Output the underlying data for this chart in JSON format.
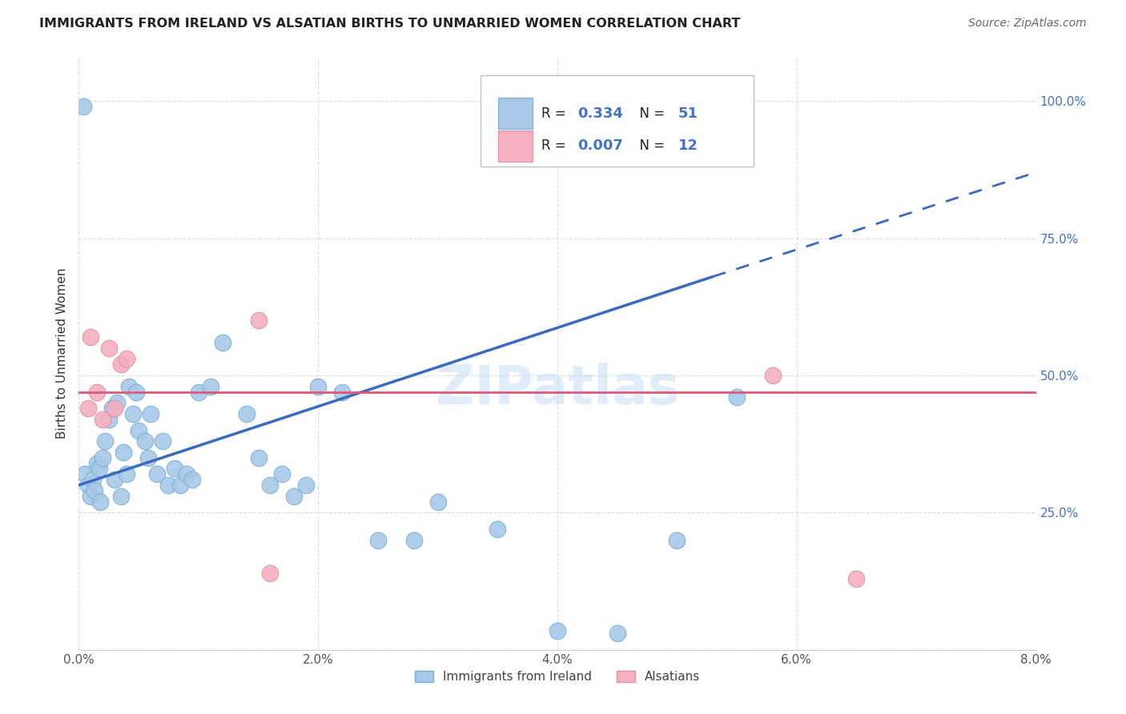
{
  "title": "IMMIGRANTS FROM IRELAND VS ALSATIAN BIRTHS TO UNMARRIED WOMEN CORRELATION CHART",
  "source": "Source: ZipAtlas.com",
  "ylabel": "Births to Unmarried Women",
  "xlim": [
    0.0,
    8.0
  ],
  "ylim": [
    0.0,
    108.0
  ],
  "xtick_vals": [
    0.0,
    2.0,
    4.0,
    6.0,
    8.0
  ],
  "xtick_labels": [
    "0.0%",
    "2.0%",
    "4.0%",
    "6.0%",
    "8.0%"
  ],
  "ytick_vals": [
    0.0,
    25.0,
    50.0,
    75.0,
    100.0
  ],
  "ytick_labels": [
    "",
    "25.0%",
    "50.0%",
    "75.0%",
    "100.0%"
  ],
  "blue_scatter_color": "#a8c8e8",
  "blue_edge_color": "#7aafd4",
  "pink_scatter_color": "#f4b0c0",
  "pink_edge_color": "#e090a8",
  "blue_line_color": "#3a6abf",
  "pink_line_color": "#e05878",
  "tick_label_color": "#4472c4",
  "legend_blue_r": "0.334",
  "legend_blue_n": "51",
  "legend_pink_r": "0.007",
  "legend_pink_n": "12",
  "watermark": "ZIPatlas",
  "blue_reg_x0": 0.0,
  "blue_reg_y0": 30.0,
  "blue_reg_x1": 5.3,
  "blue_reg_y1": 68.0,
  "blue_reg_dash_x0": 5.3,
  "blue_reg_dash_y0": 68.0,
  "blue_reg_dash_x1": 8.0,
  "blue_reg_dash_y1": 87.0,
  "pink_reg_y": 47.0,
  "blue_x": [
    0.05,
    0.08,
    0.1,
    0.12,
    0.13,
    0.15,
    0.17,
    0.18,
    0.2,
    0.22,
    0.25,
    0.28,
    0.3,
    0.32,
    0.35,
    0.37,
    0.4,
    0.42,
    0.45,
    0.48,
    0.5,
    0.55,
    0.58,
    0.6,
    0.65,
    0.7,
    0.75,
    0.8,
    0.85,
    0.9,
    0.95,
    1.0,
    1.1,
    1.2,
    1.4,
    1.5,
    1.6,
    1.7,
    1.8,
    1.9,
    2.0,
    2.2,
    2.5,
    2.8,
    3.0,
    3.5,
    4.0,
    4.5,
    5.0,
    5.5,
    0.04
  ],
  "blue_y": [
    32.0,
    30.0,
    28.0,
    31.0,
    29.0,
    34.0,
    33.0,
    27.0,
    35.0,
    38.0,
    42.0,
    44.0,
    31.0,
    45.0,
    28.0,
    36.0,
    32.0,
    48.0,
    43.0,
    47.0,
    40.0,
    38.0,
    35.0,
    43.0,
    32.0,
    38.0,
    30.0,
    33.0,
    30.0,
    32.0,
    31.0,
    47.0,
    48.0,
    56.0,
    43.0,
    35.0,
    30.0,
    32.0,
    28.0,
    30.0,
    48.0,
    47.0,
    20.0,
    20.0,
    27.0,
    22.0,
    3.5,
    3.0,
    20.0,
    46.0,
    99.0
  ],
  "pink_x": [
    0.08,
    0.1,
    0.15,
    0.2,
    0.25,
    0.3,
    0.35,
    1.5,
    1.6,
    5.8,
    6.5,
    0.4
  ],
  "pink_y": [
    44.0,
    57.0,
    47.0,
    42.0,
    55.0,
    44.0,
    52.0,
    60.0,
    14.0,
    50.0,
    13.0,
    53.0
  ]
}
